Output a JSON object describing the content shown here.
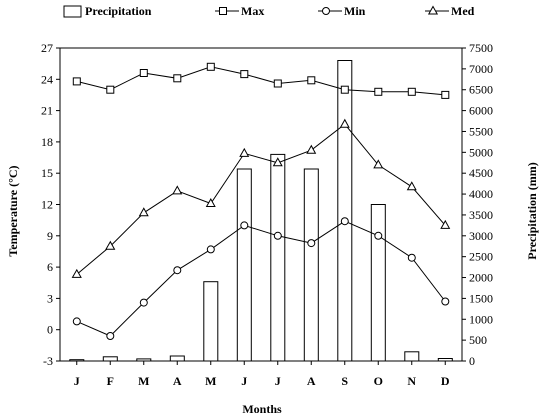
{
  "chart_data": {
    "type": "bar+line",
    "categories": [
      "J",
      "F",
      "M",
      "A",
      "M",
      "J",
      "J",
      "A",
      "S",
      "O",
      "N",
      "D"
    ],
    "xlabel": "Months",
    "ylabel_left": "Temperature (°C)",
    "ylabel_right": "Precipitation (mm)",
    "ylim_left": [
      -3,
      27
    ],
    "yticks_left": [
      "-3",
      "0",
      "3",
      "6",
      "9",
      "12",
      "15",
      "18",
      "21",
      "24",
      "27"
    ],
    "ylim_right": [
      0,
      7500
    ],
    "yticks_right": [
      "0",
      "500",
      "1000",
      "1500",
      "2000",
      "2500",
      "3000",
      "3500",
      "4000",
      "4500",
      "5000",
      "5500",
      "6000",
      "6500",
      "7000",
      "7500"
    ],
    "legend": [
      {
        "label": "Precipitation",
        "marker": "bar"
      },
      {
        "label": "Max",
        "marker": "square"
      },
      {
        "label": "Min",
        "marker": "circle"
      },
      {
        "label": "Med",
        "marker": "triangle"
      }
    ],
    "bars": {
      "name": "Precipitation",
      "values": [
        30,
        100,
        50,
        120,
        1900,
        4600,
        4950,
        4600,
        7200,
        3750,
        220,
        60
      ]
    },
    "series": [
      {
        "name": "Max",
        "marker": "square",
        "values": [
          23.8,
          23.0,
          24.6,
          24.1,
          25.2,
          24.5,
          23.6,
          23.9,
          23.0,
          22.8,
          22.8,
          22.5
        ]
      },
      {
        "name": "Min",
        "marker": "circle",
        "values": [
          0.8,
          -0.6,
          2.6,
          5.7,
          7.7,
          10.0,
          9.0,
          8.3,
          10.4,
          9.0,
          6.9,
          2.7
        ]
      },
      {
        "name": "Med",
        "marker": "triangle",
        "values": [
          5.3,
          8.0,
          11.2,
          13.3,
          12.1,
          16.9,
          16.0,
          17.2,
          19.7,
          15.8,
          13.7,
          10.0
        ]
      }
    ]
  }
}
